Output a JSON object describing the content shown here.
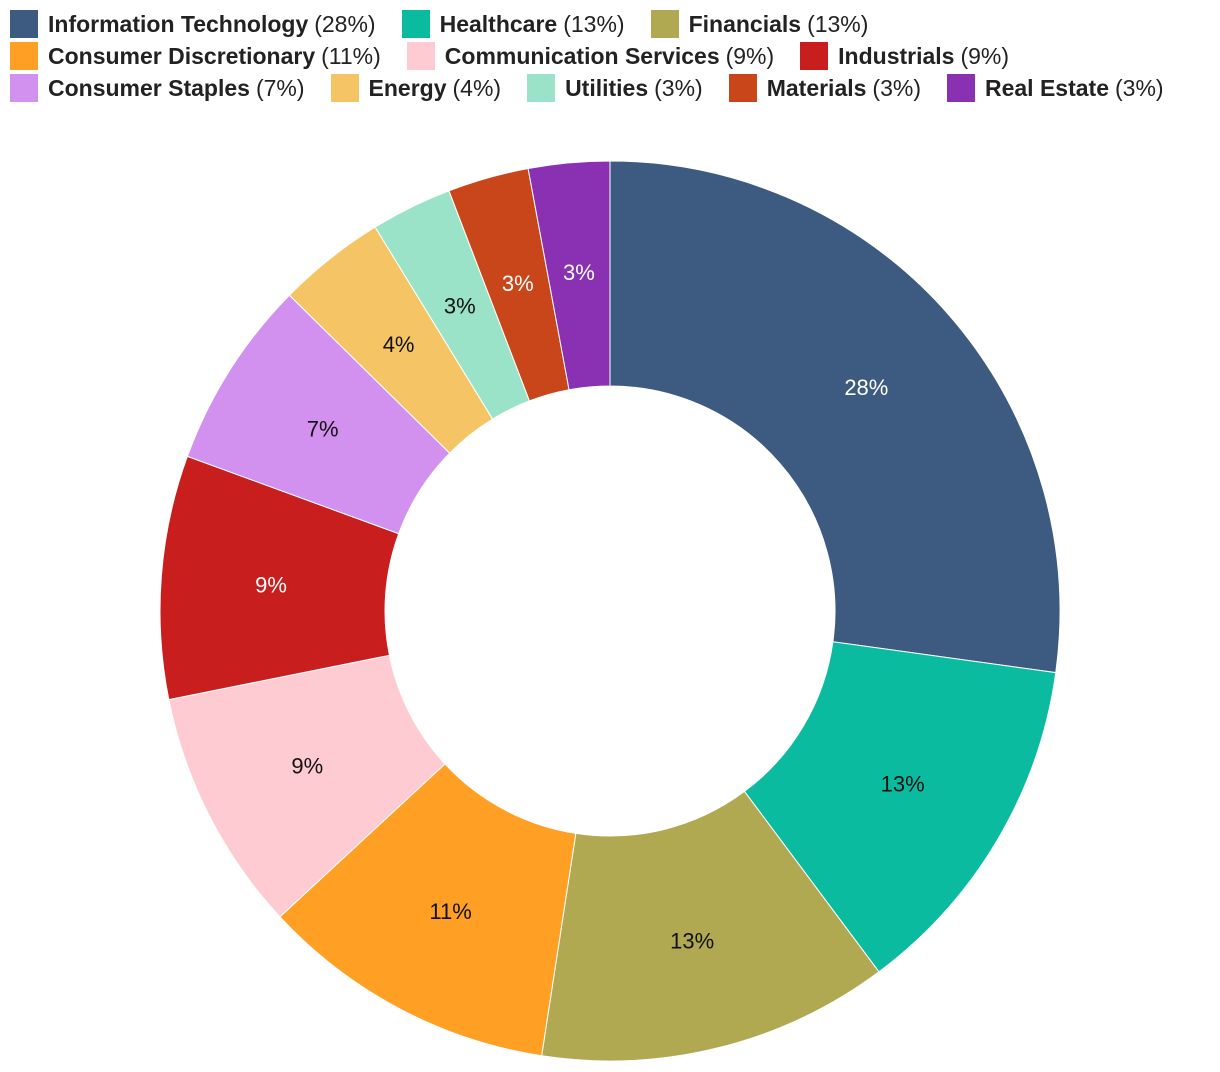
{
  "chart_data": {
    "type": "pie",
    "donut": true,
    "legend_placement": "top",
    "slices": [
      {
        "name": "Information Technology",
        "value": 28,
        "label": "28%",
        "legend_pct": "(28%)",
        "color": "#3d5a80",
        "label_color": "#ffffff"
      },
      {
        "name": "Healthcare",
        "value": 13,
        "label": "13%",
        "legend_pct": "(13%)",
        "color": "#0bbba0",
        "label_color": "#111111"
      },
      {
        "name": "Financials",
        "value": 13,
        "label": "13%",
        "legend_pct": "(13%)",
        "color": "#b0a952",
        "label_color": "#111111"
      },
      {
        "name": "Consumer Discretionary",
        "value": 11,
        "label": "11%",
        "legend_pct": "(11%)",
        "color": "#ffa024",
        "label_color": "#111111"
      },
      {
        "name": "Communication Services",
        "value": 9,
        "label": "9%",
        "legend_pct": "(9%)",
        "color": "#ffcbd3",
        "label_color": "#111111"
      },
      {
        "name": "Industrials",
        "value": 9,
        "label": "9%",
        "legend_pct": "(9%)",
        "color": "#c81e1e",
        "label_color": "#ffffff"
      },
      {
        "name": "Consumer Staples",
        "value": 7,
        "label": "7%",
        "legend_pct": "(7%)",
        "color": "#d291ef",
        "label_color": "#111111"
      },
      {
        "name": "Energy",
        "value": 4,
        "label": "4%",
        "legend_pct": "(4%)",
        "color": "#f5c565",
        "label_color": "#111111"
      },
      {
        "name": "Utilities",
        "value": 3,
        "label": "3%",
        "legend_pct": "(3%)",
        "color": "#9be3c8",
        "label_color": "#111111"
      },
      {
        "name": "Materials",
        "value": 3,
        "label": "3%",
        "legend_pct": "(3%)",
        "color": "#c9461b",
        "label_color": "#ffffff"
      },
      {
        "name": "Real Estate",
        "value": 3,
        "label": "3%",
        "legend_pct": "(3%)",
        "color": "#8a31b3",
        "label_color": "#ffffff"
      }
    ]
  }
}
